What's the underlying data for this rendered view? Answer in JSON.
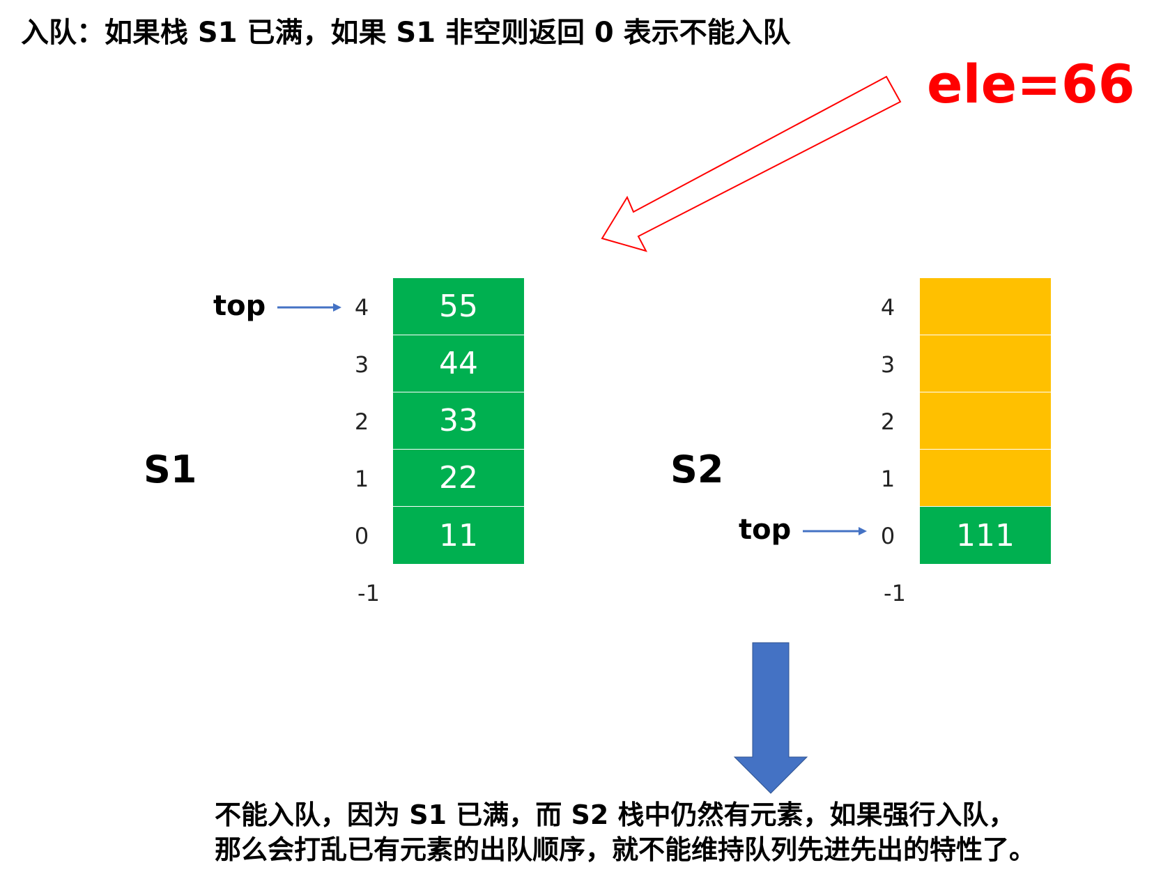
{
  "title": "入队：如果栈 S1 已满，如果 S1 非空则返回 0 表示不能入队",
  "element_label": "ele=66",
  "stack_s1": {
    "name": "S1",
    "top_label": "top",
    "indices": [
      "4",
      "3",
      "2",
      "1",
      "0",
      "-1"
    ],
    "cells": [
      {
        "value": "55",
        "color": "#00b050"
      },
      {
        "value": "44",
        "color": "#00b050"
      },
      {
        "value": "33",
        "color": "#00b050"
      },
      {
        "value": "22",
        "color": "#00b050"
      },
      {
        "value": "11",
        "color": "#00b050"
      }
    ]
  },
  "stack_s2": {
    "name": "S2",
    "top_label": "top",
    "indices": [
      "4",
      "3",
      "2",
      "1",
      "0",
      "-1"
    ],
    "cells": [
      {
        "value": "",
        "color": "#ffc000"
      },
      {
        "value": "",
        "color": "#ffc000"
      },
      {
        "value": "",
        "color": "#ffc000"
      },
      {
        "value": "",
        "color": "#ffc000"
      },
      {
        "value": "111",
        "color": "#00b050"
      }
    ]
  },
  "conclusion": {
    "line1": "不能入队，因为 S1 已满，而 S2 栈中仍然有元素，如果强行入队，",
    "line2": "那么会打乱已有元素的出队顺序，就不能维持队列先进先出的特性了。"
  },
  "colors": {
    "green": "#00b050",
    "yellow": "#ffc000",
    "red": "#ff0000",
    "blue": "#4472c4"
  }
}
